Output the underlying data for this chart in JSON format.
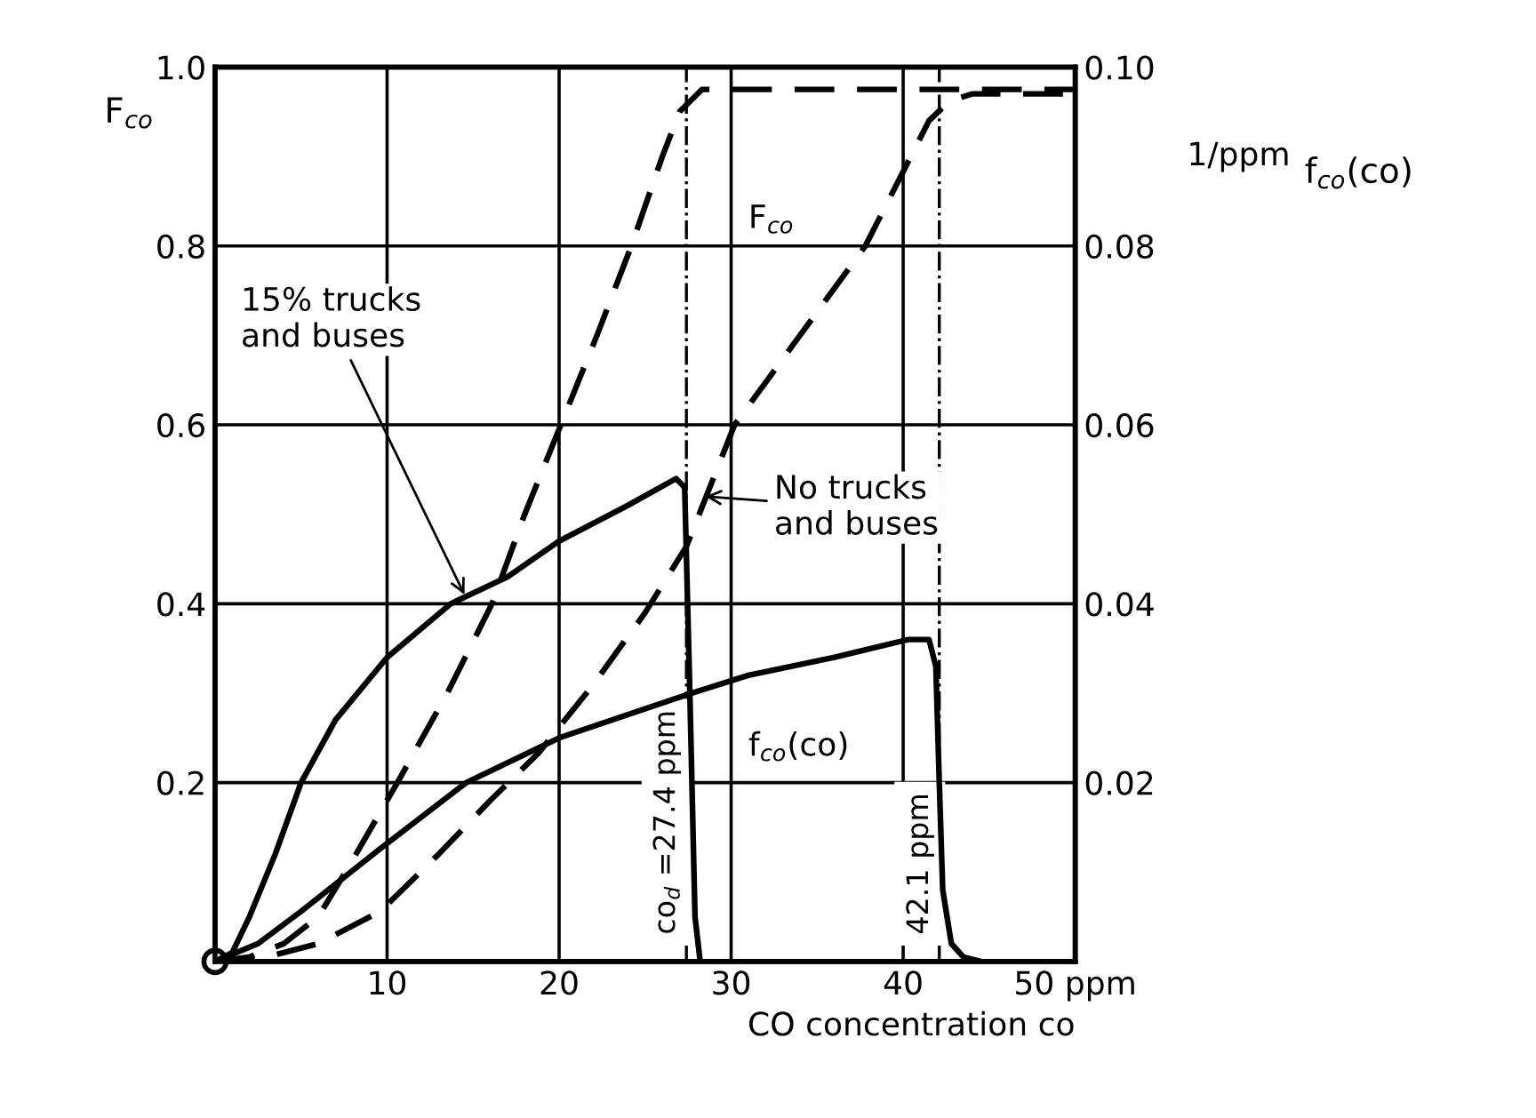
{
  "chart_data": {
    "type": "line",
    "xlabel": "CO concentration co",
    "ylabel": "F$_{co}$",
    "y2label": "f$_{co}$(co)",
    "xlim": [
      0,
      50
    ],
    "xticks": [
      10,
      20,
      30,
      40,
      {
        "value": 50,
        "label": "50 ppm"
      }
    ],
    "ylim": [
      0,
      1.0
    ],
    "yticks": [
      0.2,
      0.4,
      0.6,
      0.8,
      {
        "value": 1.0,
        "label": "1.0"
      }
    ],
    "y2lim": [
      0,
      0.1
    ],
    "y2ticks": [
      0.02,
      0.04,
      0.06,
      0.08,
      {
        "value": 0.1,
        "label": "0.10"
      }
    ],
    "grid": true,
    "marker": "none",
    "series": [
      {
        "color": "#000000",
        "line_style": "dashed",
        "x": [
          0,
          2,
          4,
          6,
          7.8,
          10.6,
          13.5,
          16.1,
          18,
          20.1,
          22.2,
          24.2,
          26,
          27,
          28.3,
          50
        ],
        "values": [
          0,
          0.005,
          0.02,
          0.05,
          0.107,
          0.2,
          0.3,
          0.4,
          0.5,
          0.6,
          0.7,
          0.8,
          0.9,
          0.95,
          0.975,
          0.975
        ]
      },
      {
        "color": "#000000",
        "line_style": "dashed",
        "x": [
          0,
          3,
          6,
          9.6,
          13,
          16,
          18.8,
          22,
          25,
          27.4,
          30.2,
          34,
          37.8,
          40.1,
          41.5,
          42.7,
          44,
          50
        ],
        "values": [
          0,
          0.005,
          0.02,
          0.056,
          0.12,
          0.18,
          0.233,
          0.31,
          0.39,
          0.464,
          0.6,
          0.7,
          0.8,
          0.887,
          0.94,
          0.962,
          0.97,
          0.97
        ]
      },
      {
        "color": "#000000",
        "line_style": "solid",
        "axis": "y2",
        "x": [
          0,
          1,
          2,
          3.5,
          5,
          7,
          10,
          13.7,
          17,
          20,
          24,
          26.8,
          27.3,
          27.6,
          27.9,
          28.2
        ],
        "values": [
          0,
          0.001,
          0.005,
          0.012,
          0.02,
          0.027,
          0.034,
          0.04,
          0.043,
          0.047,
          0.051,
          0.054,
          0.053,
          0.03,
          0.005,
          0
        ]
      },
      {
        "color": "#000000",
        "line_style": "solid",
        "axis": "y2",
        "x": [
          0,
          2.5,
          5,
          9.6,
          14.6,
          20,
          27.7,
          31,
          36,
          40.3,
          41.5,
          41.9,
          42.1,
          42.3,
          42.8,
          43.5,
          44.5
        ],
        "values": [
          0,
          0.002,
          0.0056,
          0.0126,
          0.02,
          0.025,
          0.03,
          0.032,
          0.034,
          0.036,
          0.036,
          0.033,
          0.02,
          0.008,
          0.002,
          0.0005,
          0
        ]
      }
    ],
    "ref_lines": [
      {
        "axis": "x",
        "value": 27.4,
        "label": "co$_{d}$ =27.4 ppm",
        "line_style": "dashdot",
        "color": "#000000"
      },
      {
        "axis": "x",
        "value": 42.1,
        "label": "42.1 ppm",
        "line_style": "dashdot",
        "color": "#000000"
      }
    ],
    "annotations": [
      {
        "text": "15% trucks\nand buses",
        "x": 14.5,
        "y": 0.41
      },
      {
        "text": "No trucks\nand buses",
        "x": 28.5,
        "y": 0.52
      },
      "F$_{co}$",
      "f$_{co}$(co)",
      "1/ppm"
    ]
  }
}
